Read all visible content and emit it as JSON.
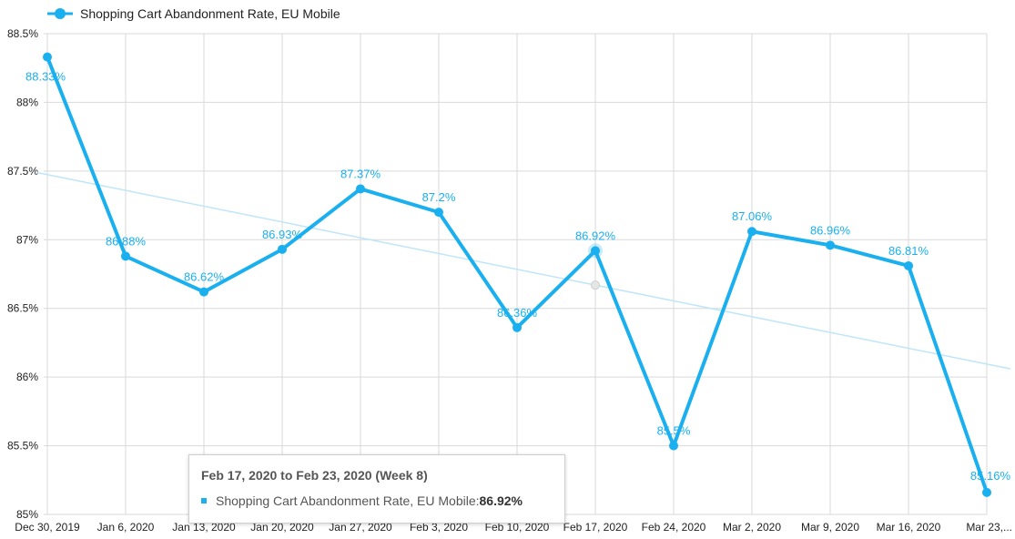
{
  "colors": {
    "series": "#1ab0f0",
    "trend": "#bfe6f8",
    "grid": "#d9d9d9",
    "text": "#222222"
  },
  "legend": {
    "label": "Shopping Cart Abandonment Rate, EU Mobile",
    "icon": "circle-line-marker-icon"
  },
  "tooltip": {
    "title": "Feb 17, 2020 to Feb 23, 2020 (Week 8)",
    "series_label": "Shopping Cart Abandonment Rate, EU Mobile: ",
    "value": "86.92%"
  },
  "chart_data": {
    "type": "line",
    "x": [
      "Dec 30, 2019",
      "Jan 6, 2020",
      "Jan 13, 2020",
      "Jan 20, 2020",
      "Jan 27, 2020",
      "Feb 3, 2020",
      "Feb 10, 2020",
      "Feb 17, 2020",
      "Feb 24, 2020",
      "Mar 2, 2020",
      "Mar 9, 2020",
      "Mar 16, 2020",
      "Mar 23,..."
    ],
    "series": [
      {
        "name": "Shopping Cart Abandonment Rate, EU Mobile",
        "values": [
          88.33,
          86.88,
          86.62,
          86.93,
          87.37,
          87.2,
          86.36,
          86.92,
          85.5,
          87.06,
          86.96,
          86.81,
          85.16
        ],
        "data_labels": [
          "88.33%",
          "86.88%",
          "86.62%",
          "86.93%",
          "87.37%",
          "87.2%",
          "86.36%",
          "86.92%",
          "85.5%",
          "87.06%",
          "86.96%",
          "86.81%",
          "85.16%"
        ]
      }
    ],
    "trendline": {
      "start": 87.49,
      "end": 86.06
    },
    "highlighted_index": 7,
    "ylim": [
      85,
      88.5
    ],
    "yticks": [
      85,
      85.5,
      86,
      86.5,
      87,
      87.5,
      88,
      88.5
    ],
    "ytick_labels": [
      "85%",
      "85.5%",
      "86%",
      "86.5%",
      "87%",
      "87.5%",
      "88%",
      "88.5%"
    ],
    "grid": true,
    "legend_position": "top-left"
  }
}
